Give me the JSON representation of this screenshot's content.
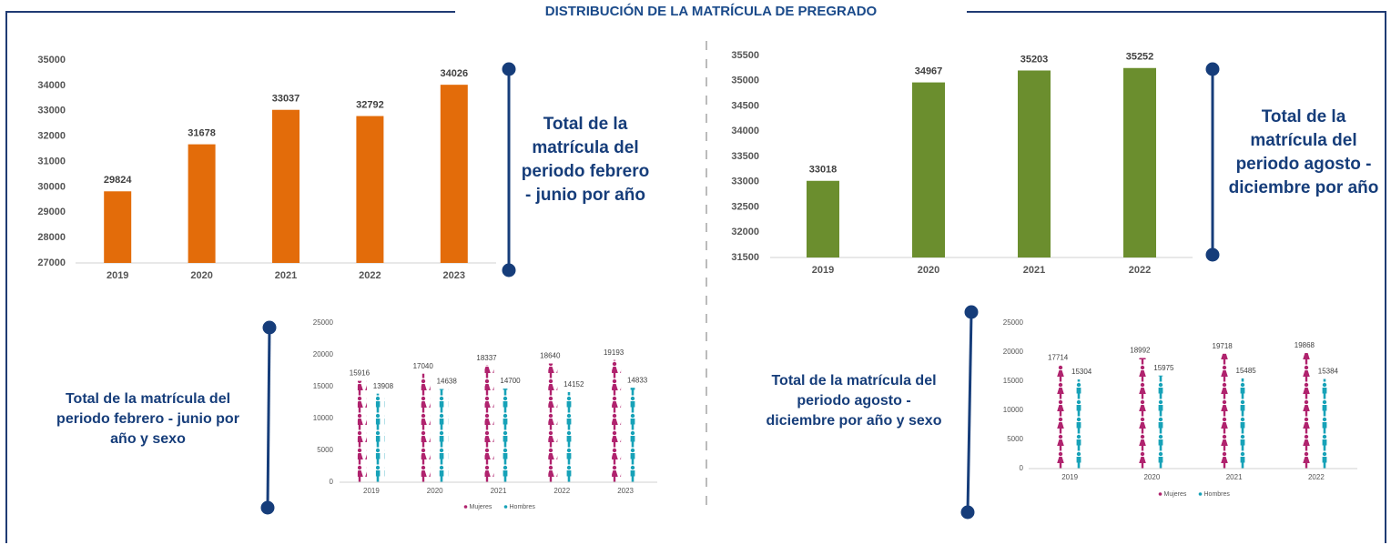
{
  "title": "DISTRIBUCIÓN DE LA MATRÍCULA DE PREGRADO",
  "chart_data": [
    {
      "type": "bar",
      "annotation": "Total de la matrícula del periodo febrero - junio por año",
      "categories": [
        "2019",
        "2020",
        "2021",
        "2022",
        "2023"
      ],
      "values": [
        29824,
        31678,
        33037,
        32792,
        34026
      ],
      "color": "#e36c0a",
      "ylim": [
        27000,
        35000
      ],
      "yticks": [
        27000,
        28000,
        29000,
        30000,
        31000,
        32000,
        33000,
        34000,
        35000
      ]
    },
    {
      "type": "bar",
      "annotation": "Total de la matrícula del periodo agosto - diciembre por año",
      "categories": [
        "2019",
        "2020",
        "2021",
        "2022"
      ],
      "values": [
        33018,
        34967,
        35203,
        35252
      ],
      "color": "#6b8e2e",
      "ylim": [
        31500,
        35500
      ],
      "yticks": [
        31500,
        32000,
        32500,
        33000,
        33500,
        34000,
        34500,
        35000,
        35500
      ]
    },
    {
      "type": "pictogram",
      "annotation": "Total de la matrícula del periodo febrero - junio por año y sexo",
      "categories": [
        "2019",
        "2020",
        "2021",
        "2022",
        "2023"
      ],
      "series": [
        {
          "name": "Mujeres",
          "color": "#b0236e",
          "values": [
            15916,
            17040,
            18337,
            18640,
            19193
          ]
        },
        {
          "name": "Hombres",
          "color": "#17a2b8",
          "values": [
            13908,
            14638,
            14700,
            14152,
            14833
          ]
        }
      ],
      "ylim": [
        0,
        25000
      ],
      "yticks": [
        0,
        5000,
        10000,
        15000,
        20000,
        25000
      ]
    },
    {
      "type": "pictogram",
      "annotation": "Total de la matrícula del periodo agosto - diciembre por año y sexo",
      "categories": [
        "2019",
        "2020",
        "2021",
        "2022"
      ],
      "series": [
        {
          "name": "Mujeres",
          "color": "#b0236e",
          "values": [
            17714,
            18992,
            19718,
            19868
          ]
        },
        {
          "name": "Hombres",
          "color": "#17a2b8",
          "values": [
            15304,
            15975,
            15485,
            15384
          ]
        }
      ],
      "ylim": [
        0,
        25000
      ],
      "yticks": [
        0,
        5000,
        10000,
        15000,
        20000,
        25000
      ]
    }
  ]
}
